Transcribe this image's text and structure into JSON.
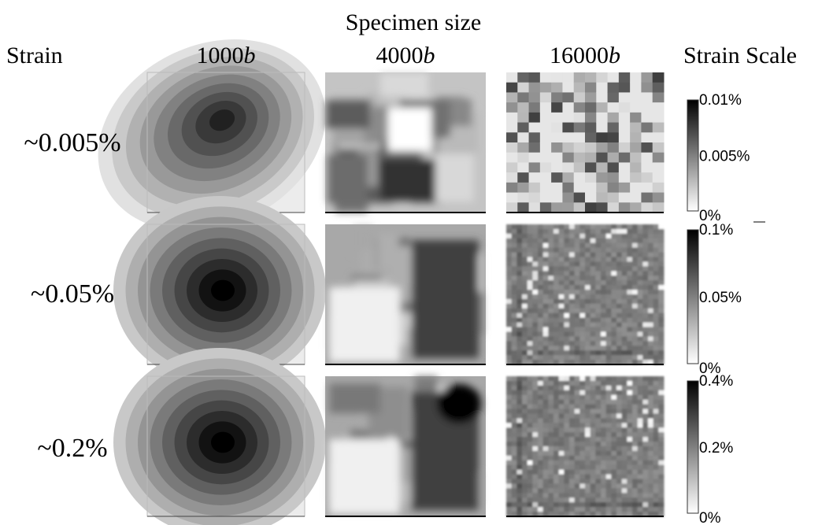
{
  "header": {
    "title": "Specimen size",
    "row_axis_label": "Strain",
    "scale_label": "Strain Scale"
  },
  "columns": [
    {
      "number": "1000",
      "unit": "b"
    },
    {
      "number": "4000",
      "unit": "b"
    },
    {
      "number": "16000",
      "unit": "b"
    }
  ],
  "rows": [
    {
      "label": "~0.005%",
      "scale": {
        "max": "0.01%",
        "mid": "0.005%",
        "min": "0%"
      }
    },
    {
      "label": "~0.05%",
      "scale": {
        "max": "0.1%",
        "mid": "0.05%",
        "min": "0%"
      }
    },
    {
      "label": "~0.2%",
      "scale": {
        "max": "0.4%",
        "mid": "0.2%",
        "min": "0%"
      }
    }
  ]
}
